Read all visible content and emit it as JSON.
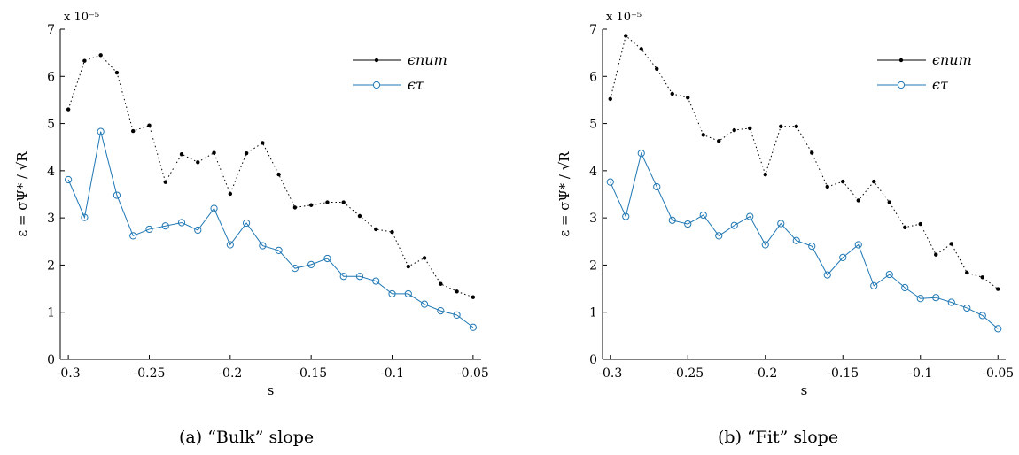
{
  "chart_data": [
    {
      "type": "line",
      "caption": "(a)  “Bulk” slope",
      "xlabel": "s",
      "ylabel": "ε = σΨ* / √R",
      "y_multiplier": "x 10⁻⁵",
      "xlim": [
        -0.305,
        -0.045
      ],
      "ylim": [
        0,
        7
      ],
      "xticks": [
        "-0.3",
        "-0.25",
        "-0.2",
        "-0.15",
        "-0.1",
        "-0.05"
      ],
      "yticks": [
        "0",
        "1",
        "2",
        "3",
        "4",
        "5",
        "6",
        "7"
      ],
      "legend_position": "top-right",
      "grid": false,
      "x": [
        -0.3,
        -0.29,
        -0.28,
        -0.27,
        -0.26,
        -0.25,
        -0.24,
        -0.23,
        -0.22,
        -0.21,
        -0.2,
        -0.19,
        -0.18,
        -0.17,
        -0.16,
        -0.15,
        -0.14,
        -0.13,
        -0.12,
        -0.11,
        -0.1,
        -0.09,
        -0.08,
        -0.07,
        -0.06,
        -0.05
      ],
      "series": [
        {
          "name": "ϵnum",
          "style": "dotted",
          "color": "#000000",
          "values": [
            5.3,
            6.33,
            6.45,
            6.08,
            4.84,
            4.96,
            3.76,
            4.35,
            4.18,
            4.38,
            3.51,
            4.37,
            4.59,
            3.92,
            3.22,
            3.27,
            3.33,
            3.33,
            3.04,
            2.76,
            2.7,
            1.97,
            2.15,
            1.6,
            1.44,
            1.32
          ]
        },
        {
          "name": "ϵτ",
          "style": "solid",
          "color": "#1f77b4",
          "values": [
            3.81,
            3.01,
            4.83,
            3.48,
            2.62,
            2.76,
            2.83,
            2.9,
            2.74,
            3.2,
            2.43,
            2.89,
            2.41,
            2.31,
            1.93,
            2.01,
            2.14,
            1.76,
            1.76,
            1.66,
            1.39,
            1.39,
            1.17,
            1.03,
            0.94,
            0.68
          ]
        }
      ]
    },
    {
      "type": "line",
      "caption": "(b)  “Fit” slope",
      "xlabel": "s",
      "ylabel": "ε = σΨ* / √R",
      "y_multiplier": "x 10⁻⁵",
      "xlim": [
        -0.305,
        -0.045
      ],
      "ylim": [
        0,
        7
      ],
      "xticks": [
        "-0.3",
        "-0.25",
        "-0.2",
        "-0.15",
        "-0.1",
        "-0.05"
      ],
      "yticks": [
        "0",
        "1",
        "2",
        "3",
        "4",
        "5",
        "6",
        "7"
      ],
      "legend_position": "top-right",
      "grid": false,
      "x": [
        -0.3,
        -0.29,
        -0.28,
        -0.27,
        -0.26,
        -0.25,
        -0.24,
        -0.23,
        -0.22,
        -0.21,
        -0.2,
        -0.19,
        -0.18,
        -0.17,
        -0.16,
        -0.15,
        -0.14,
        -0.13,
        -0.12,
        -0.11,
        -0.1,
        -0.09,
        -0.08,
        -0.07,
        -0.06,
        -0.05
      ],
      "series": [
        {
          "name": "ϵnum",
          "style": "dotted",
          "color": "#000000",
          "values": [
            5.52,
            6.86,
            6.58,
            6.16,
            5.63,
            5.55,
            4.76,
            4.63,
            4.86,
            4.9,
            3.92,
            4.94,
            4.94,
            4.38,
            3.66,
            3.77,
            3.37,
            3.77,
            3.33,
            2.8,
            2.87,
            2.22,
            2.45,
            1.84,
            1.74,
            1.49
          ]
        },
        {
          "name": "ϵτ",
          "style": "solid",
          "color": "#1f77b4",
          "values": [
            3.76,
            3.03,
            4.37,
            3.66,
            2.95,
            2.87,
            3.06,
            2.62,
            2.84,
            3.03,
            2.43,
            2.88,
            2.52,
            2.4,
            1.79,
            2.16,
            2.43,
            1.56,
            1.8,
            1.52,
            1.29,
            1.31,
            1.21,
            1.09,
            0.93,
            0.65
          ]
        }
      ]
    }
  ]
}
